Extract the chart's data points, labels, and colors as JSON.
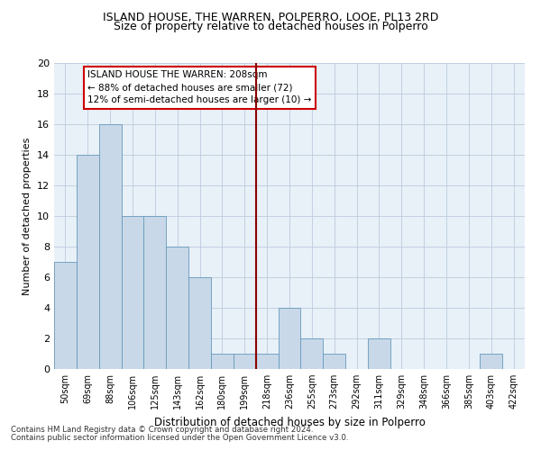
{
  "title": "ISLAND HOUSE, THE WARREN, POLPERRO, LOOE, PL13 2RD",
  "subtitle": "Size of property relative to detached houses in Polperro",
  "xlabel": "Distribution of detached houses by size in Polperro",
  "ylabel": "Number of detached properties",
  "bar_labels": [
    "50sqm",
    "69sqm",
    "88sqm",
    "106sqm",
    "125sqm",
    "143sqm",
    "162sqm",
    "180sqm",
    "199sqm",
    "218sqm",
    "236sqm",
    "255sqm",
    "273sqm",
    "292sqm",
    "311sqm",
    "329sqm",
    "348sqm",
    "366sqm",
    "385sqm",
    "403sqm",
    "422sqm"
  ],
  "bar_values": [
    7,
    14,
    16,
    10,
    10,
    8,
    6,
    1,
    1,
    1,
    4,
    2,
    1,
    0,
    2,
    0,
    0,
    0,
    0,
    1,
    0
  ],
  "bar_color": "#c8d8e8",
  "bar_edge_color": "#6699bb",
  "vline_x_index": 8.5,
  "vline_color": "#8b0000",
  "annotation_line1": "ISLAND HOUSE THE WARREN: 208sqm",
  "annotation_line2": "← 88% of detached houses are smaller (72)",
  "annotation_line3": "12% of semi-detached houses are larger (10) →",
  "annotation_box_color": "#ffffff",
  "annotation_box_edge": "#cc0000",
  "ylim": [
    0,
    20
  ],
  "yticks": [
    0,
    2,
    4,
    6,
    8,
    10,
    12,
    14,
    16,
    18,
    20
  ],
  "footer1": "Contains HM Land Registry data © Crown copyright and database right 2024.",
  "footer2": "Contains public sector information licensed under the Open Government Licence v3.0.",
  "grid_color": "#bbccdd",
  "background_color": "#e8f0f8",
  "title_fontsize": 9,
  "subtitle_fontsize": 9
}
